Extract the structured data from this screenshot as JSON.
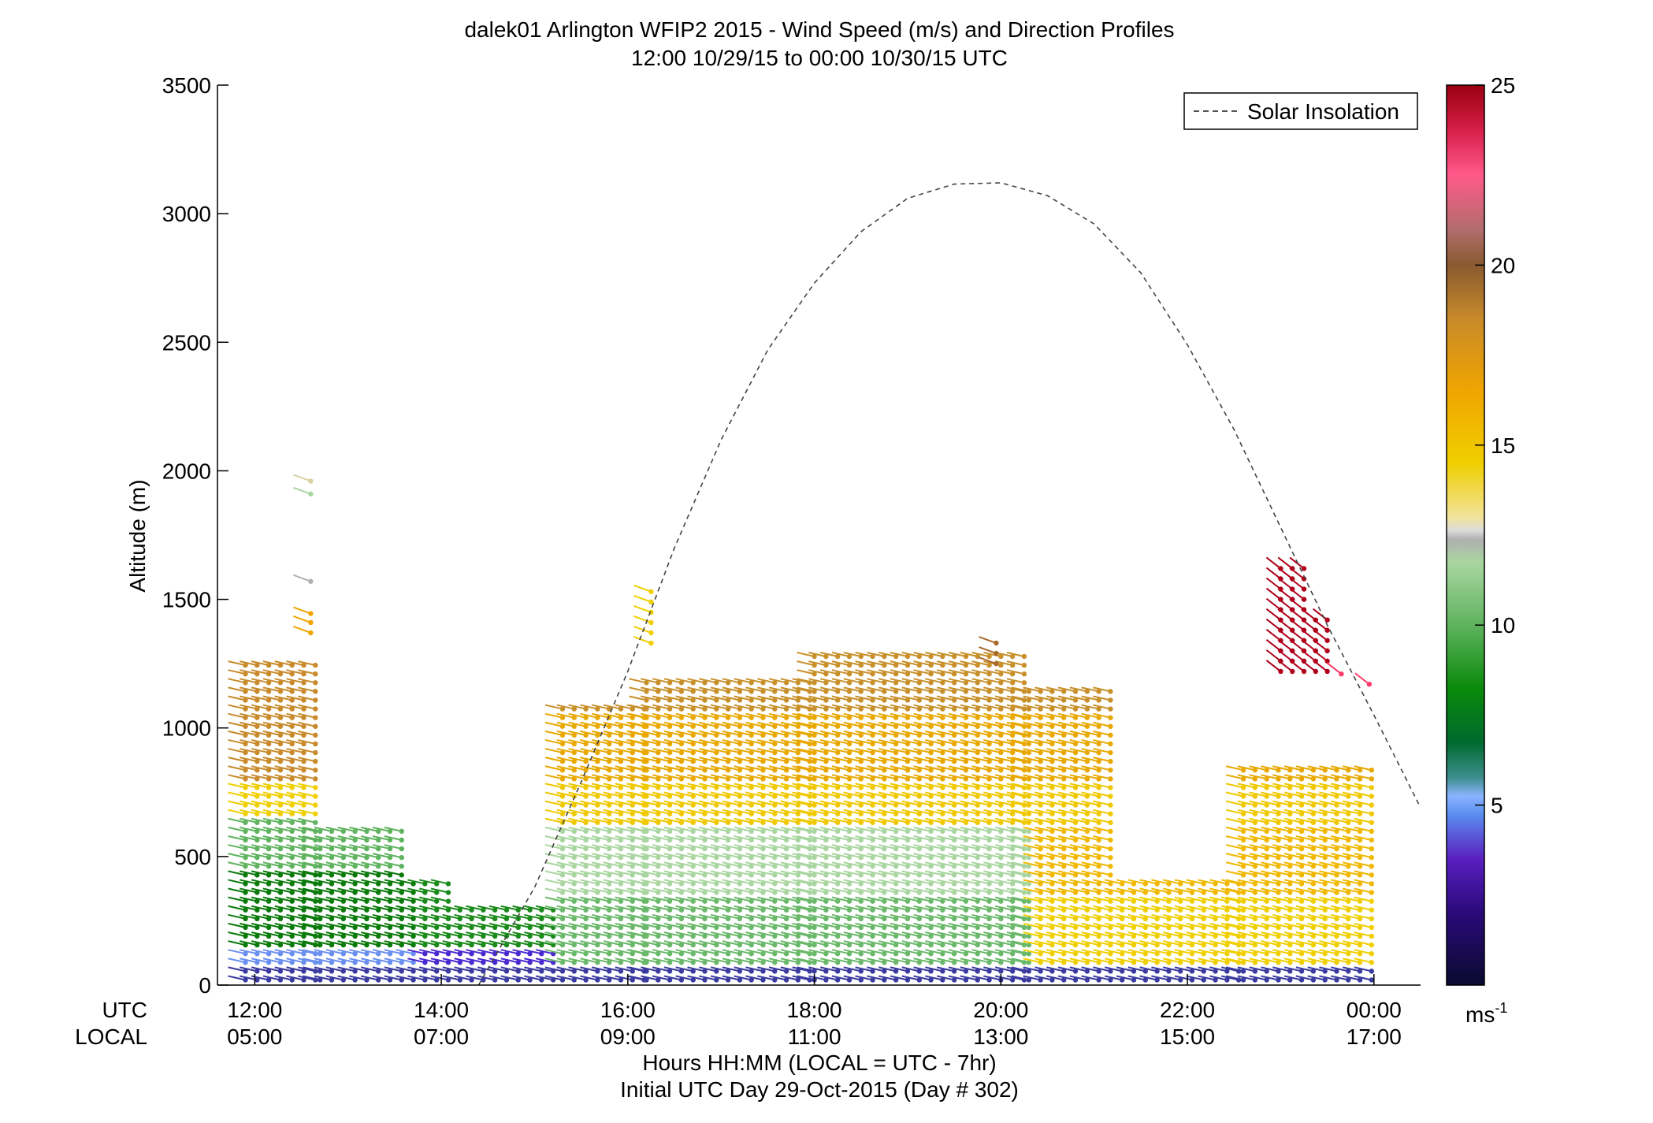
{
  "chart_data": {
    "type": "scatter",
    "title": "dalek01 Arlington WFIP2 2015 - Wind Speed (m/s) and Direction Profiles",
    "subtitle": "12:00 10/29/15 to 00:00 10/30/15  UTC",
    "ylabel": "Altitude (m)",
    "xlabel": "Hours HH:MM  (LOCAL = UTC - 7hr)",
    "xlabel2": "Initial UTC Day 29-Oct-2015 (Day # 302)",
    "xlabel_utc": "UTC",
    "xlabel_local": "LOCAL",
    "x_ticks_utc": [
      "12:00",
      "14:00",
      "16:00",
      "18:00",
      "20:00",
      "22:00",
      "00:00"
    ],
    "x_ticks_local": [
      "05:00",
      "07:00",
      "09:00",
      "11:00",
      "13:00",
      "15:00",
      "17:00"
    ],
    "x_tick_hours": [
      12,
      14,
      16,
      18,
      20,
      22,
      24
    ],
    "xlim": [
      11.6,
      24.5
    ],
    "ylim": [
      0,
      3500
    ],
    "y_ticks": [
      0,
      500,
      1000,
      1500,
      2000,
      2500,
      3000,
      3500
    ],
    "legend": {
      "label": "Solar Insolation",
      "placement": "top-right"
    },
    "colorbar": {
      "ticks": [
        5,
        10,
        15,
        20,
        25
      ],
      "range": [
        0,
        25
      ],
      "units": "ms",
      "units_sup": "-1"
    },
    "solar_insolation": {
      "x": [
        14.4,
        15.0,
        15.5,
        16.0,
        16.5,
        17.0,
        17.5,
        18.0,
        18.5,
        19.0,
        19.5,
        20.0,
        20.5,
        21.0,
        21.5,
        22.0,
        22.5,
        23.0,
        23.5,
        24.0,
        24.5
      ],
      "y": [
        0,
        380,
        790,
        1220,
        1700,
        2120,
        2470,
        2730,
        2930,
        3060,
        3115,
        3120,
        3070,
        2960,
        2770,
        2490,
        2160,
        1780,
        1400,
        1050,
        690
      ]
    },
    "profiles_summary": {
      "description_rows": [
        {
          "start": 11.9,
          "end": 12.7,
          "top": 1250
        },
        {
          "start": 12.7,
          "end": 13.7,
          "top": 600
        },
        {
          "start": 13.7,
          "end": 14.2,
          "top": 400
        },
        {
          "start": 14.2,
          "end": 15.3,
          "top": 300
        },
        {
          "start": 15.3,
          "end": 16.2,
          "top": 1100
        },
        {
          "start": 16.2,
          "end": 18.0,
          "top": 1200
        },
        {
          "start": 18.0,
          "end": 20.3,
          "top": 1300
        },
        {
          "start": 20.3,
          "end": 21.3,
          "top": 1150
        },
        {
          "start": 21.3,
          "end": 22.6,
          "top": 400
        },
        {
          "start": 22.6,
          "end": 24.0,
          "top": 850
        }
      ]
    }
  }
}
